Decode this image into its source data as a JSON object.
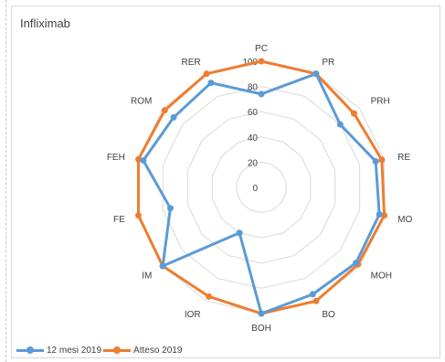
{
  "chart_data": {
    "type": "radar",
    "title": "Infliximab",
    "categories": [
      "PC",
      "PR",
      "PRH",
      "RE",
      "MO",
      "MOH",
      "BO",
      "BOH",
      "IOR",
      "IM",
      "FE",
      "FEH",
      "ROM",
      "RER"
    ],
    "series": [
      {
        "name": "12 mesi 2019",
        "color": "#5b9bd5",
        "values": [
          74,
          100,
          80,
          93,
          96,
          96,
          94,
          100,
          40,
          100,
          74,
          96,
          89,
          92
        ]
      },
      {
        "name": "Atteso 2019",
        "color": "#ed7d31",
        "values": [
          100,
          100,
          94,
          98,
          100,
          98,
          100,
          100,
          96,
          100,
          100,
          100,
          98,
          100
        ]
      }
    ],
    "rlim": [
      0,
      100
    ],
    "ticks": [
      "0",
      "20",
      "40",
      "60",
      "80",
      "100"
    ],
    "legend": "bottom-left",
    "grid": true
  }
}
